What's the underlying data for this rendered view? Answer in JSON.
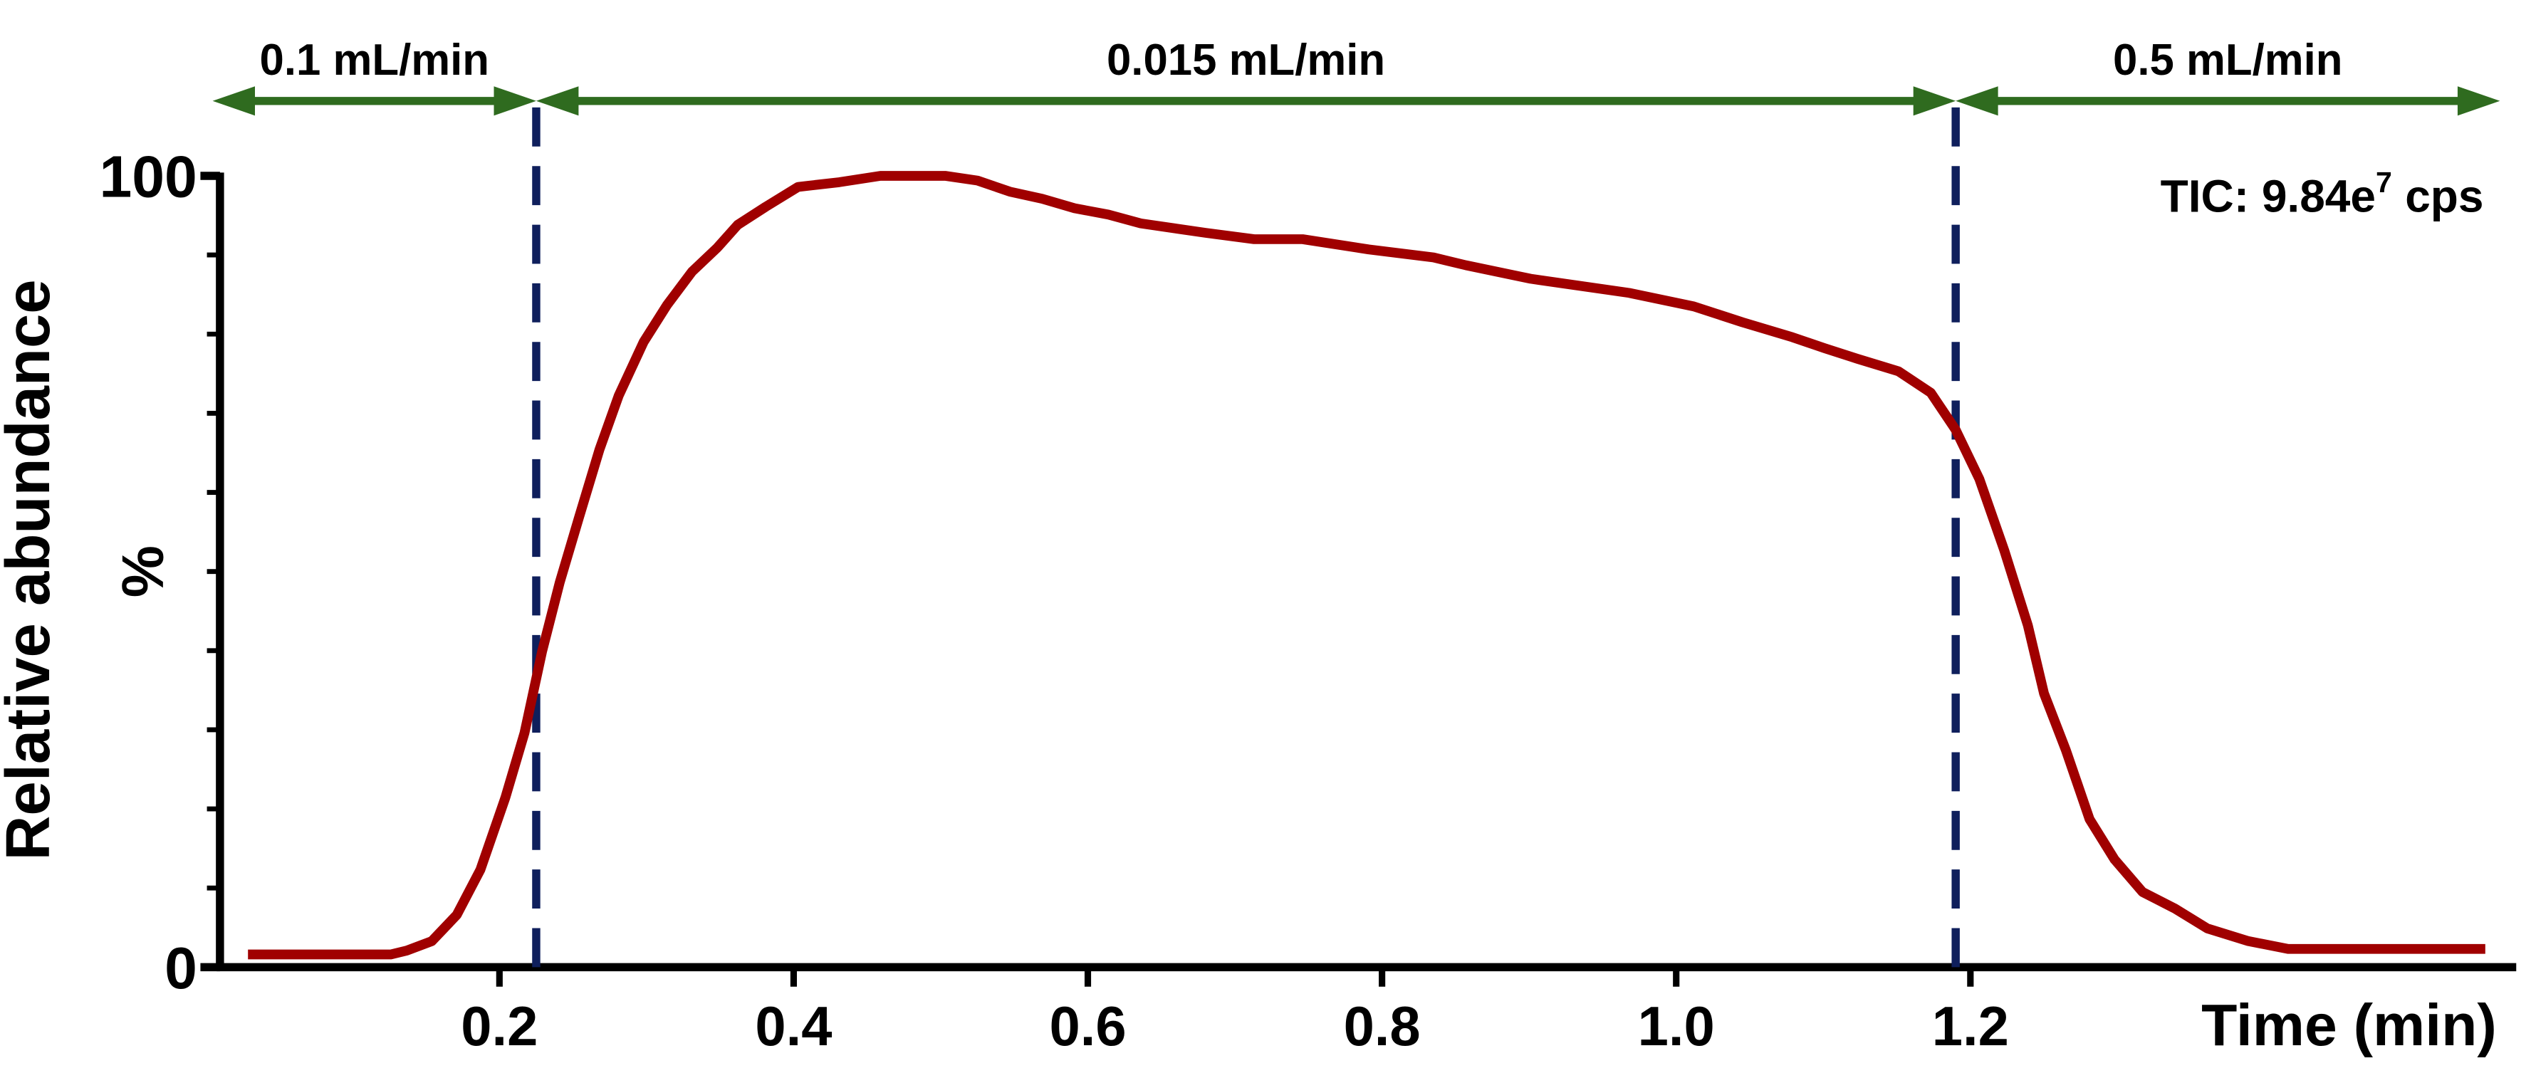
{
  "chart_data": {
    "type": "line",
    "x_label": "Time (min)",
    "y_label": "Relative abundance",
    "y_unit_label": "%",
    "tic": {
      "prefix": "TIC: 9.84e",
      "exponent": "7",
      "suffix": "cps"
    },
    "xlim": [
      0.01,
      1.56
    ],
    "ylim": [
      0,
      100
    ],
    "xticks": [
      0.2,
      0.4,
      0.6,
      0.8,
      {
        "value": 1,
        "label": "1.0"
      },
      1.2
    ],
    "yticks": [
      0,
      100
    ],
    "y_minor_ticks": [
      10,
      20,
      30,
      40,
      50,
      60,
      70,
      80,
      90
    ],
    "flow_segments": [
      {
        "label": "0.1 mL/min",
        "range": [
          0.005,
          0.225
        ]
      },
      {
        "label": "0.015 mL/min",
        "range": [
          0.225,
          1.19
        ]
      },
      {
        "label": "0.5 mL/min",
        "range": [
          1.19,
          1.56
        ]
      }
    ],
    "flow_color": "#2f6b1f",
    "vlines": [
      0.225,
      1.19
    ],
    "vline_color": "#0f1f5c",
    "series": [
      {
        "name": "TIC",
        "color": "#a00000",
        "x": [
          0.029,
          0.126,
          0.137,
          0.154,
          0.171,
          0.187,
          0.204,
          0.217,
          0.229,
          0.241,
          0.254,
          0.268,
          0.281,
          0.298,
          0.314,
          0.331,
          0.348,
          0.362,
          0.381,
          0.403,
          0.431,
          0.459,
          0.481,
          0.503,
          0.525,
          0.547,
          0.569,
          0.591,
          0.614,
          0.636,
          0.68,
          0.713,
          0.746,
          0.791,
          0.835,
          0.857,
          0.901,
          0.968,
          1.012,
          1.045,
          1.079,
          1.101,
          1.123,
          1.151,
          1.173,
          1.19,
          1.206,
          1.223,
          1.239,
          1.25,
          1.265,
          1.281,
          1.298,
          1.317,
          1.339,
          1.361,
          1.389,
          1.416,
          1.433,
          1.55
        ],
        "values": [
          1.6,
          1.6,
          2.1,
          3.3,
          6.6,
          12.3,
          21.4,
          29.6,
          39.9,
          48.6,
          56.8,
          65.4,
          72.2,
          79.0,
          83.7,
          87.9,
          90.9,
          93.8,
          96.1,
          98.6,
          99.2,
          100,
          100,
          100,
          99.4,
          98.0,
          97.1,
          95.9,
          95.1,
          94.0,
          92.8,
          92.0,
          92.0,
          90.7,
          89.7,
          88.7,
          87.0,
          85.2,
          83.5,
          81.5,
          79.6,
          78.2,
          76.9,
          75.3,
          72.6,
          67.9,
          61.7,
          52.7,
          43.2,
          34.6,
          27.4,
          18.7,
          13.6,
          9.5,
          7.4,
          4.9,
          3.3,
          2.3,
          2.3,
          2.3
        ]
      }
    ]
  }
}
